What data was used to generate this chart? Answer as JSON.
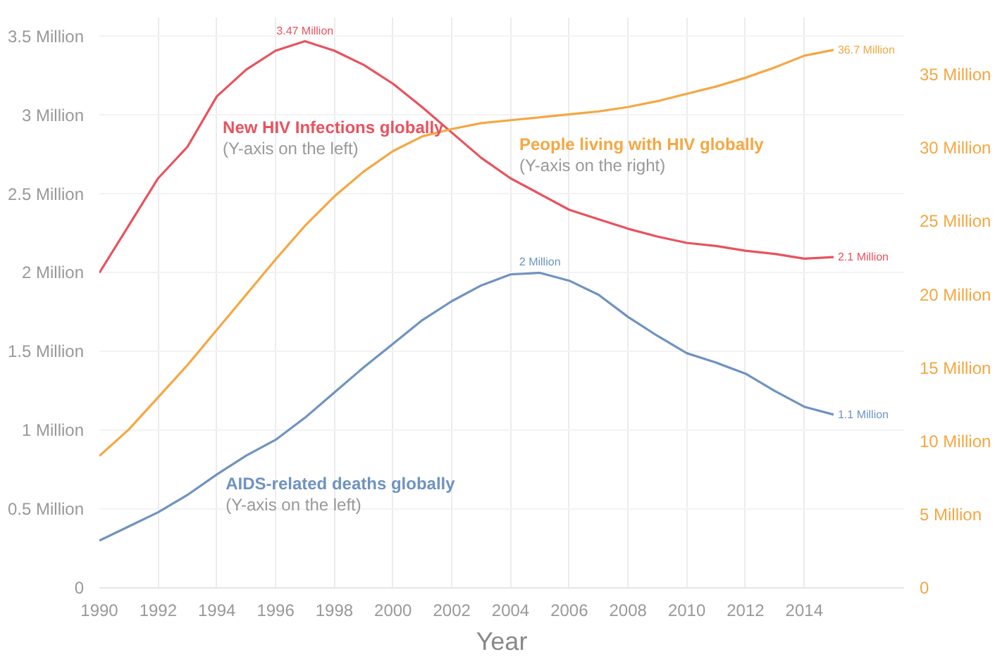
{
  "chart_data": {
    "type": "line",
    "xlabel": "Year",
    "x": [
      1990,
      1991,
      1992,
      1993,
      1994,
      1995,
      1996,
      1997,
      1998,
      1999,
      2000,
      2001,
      2002,
      2003,
      2004,
      2005,
      2006,
      2007,
      2008,
      2009,
      2010,
      2011,
      2012,
      2013,
      2014,
      2015
    ],
    "series": [
      {
        "name": "New HIV Infections globally",
        "color": "#e8525e",
        "values": [
          2.0,
          2.3,
          2.6,
          2.8,
          3.12,
          3.29,
          3.41,
          3.47,
          3.41,
          3.32,
          3.2,
          3.05,
          2.89,
          2.73,
          2.6,
          2.5,
          2.4,
          2.34,
          2.28,
          2.23,
          2.19,
          2.17,
          2.14,
          2.12,
          2.09,
          2.1
        ],
        "value_labels": [
          null,
          null,
          null,
          null,
          null,
          null,
          null,
          "3.47 Million",
          null,
          null,
          null,
          null,
          null,
          null,
          null,
          null,
          null,
          null,
          null,
          null,
          null,
          null,
          null,
          null,
          null,
          "2.1 Million"
        ]
      },
      {
        "name": "People living with HIV globally",
        "color": "#f5a742",
        "axis": "y2",
        "values": [
          9.0,
          10.8,
          13.0,
          15.2,
          17.6,
          20.0,
          22.4,
          24.7,
          26.7,
          28.4,
          29.8,
          30.8,
          31.3,
          31.7,
          31.9,
          32.1,
          32.3,
          32.5,
          32.8,
          33.2,
          33.7,
          34.2,
          34.8,
          35.5,
          36.3,
          36.7
        ],
        "value_labels": [
          null,
          null,
          null,
          null,
          null,
          null,
          null,
          null,
          null,
          null,
          null,
          null,
          null,
          null,
          null,
          null,
          null,
          null,
          null,
          null,
          null,
          null,
          null,
          null,
          null,
          "36.7 Million"
        ]
      },
      {
        "name": "AIDS-related deaths globally",
        "color": "#6f93c0",
        "values": [
          0.3,
          0.39,
          0.48,
          0.59,
          0.72,
          0.84,
          0.94,
          1.08,
          1.24,
          1.4,
          1.55,
          1.7,
          1.82,
          1.92,
          1.99,
          2.0,
          1.95,
          1.86,
          1.72,
          1.6,
          1.49,
          1.43,
          1.36,
          1.25,
          1.15,
          1.1
        ],
        "value_labels": [
          null,
          null,
          null,
          null,
          null,
          null,
          null,
          null,
          null,
          null,
          null,
          null,
          null,
          null,
          null,
          "2 Million",
          null,
          null,
          null,
          null,
          null,
          null,
          null,
          null,
          null,
          "1.1 Million"
        ]
      }
    ],
    "annotations": [
      "(Y-axis on the left)",
      "(Y-axis on the right)",
      "(Y-axis on the left)"
    ],
    "xlim": [
      1990,
      2017.4
    ],
    "xticks": [
      1990,
      1992,
      1994,
      1996,
      1998,
      2000,
      2002,
      2004,
      2006,
      2008,
      2010,
      2012,
      2014
    ],
    "ylim": [
      0,
      3.62
    ],
    "yticks": [
      0,
      {
        "value": 0.5,
        "label": "0.5 Million"
      },
      {
        "value": 1,
        "label": "1 Million"
      },
      {
        "value": 1.5,
        "label": "1.5 Million"
      },
      {
        "value": 2,
        "label": "2 Million"
      },
      {
        "value": 2.5,
        "label": "2.5 Million"
      },
      {
        "value": 3,
        "label": "3 Million"
      },
      {
        "value": 3.5,
        "label": "3.5 Million"
      }
    ],
    "y2lim": [
      0,
      38.9
    ],
    "y2ticks": [
      0,
      {
        "value": 5,
        "label": "5 Million"
      },
      {
        "value": 10,
        "label": "10 Million"
      },
      {
        "value": 15,
        "label": "15 Million"
      },
      {
        "value": 20,
        "label": "20 Million"
      },
      {
        "value": 25,
        "label": "25 Million"
      },
      {
        "value": 30,
        "label": "30 Million"
      },
      {
        "value": 35,
        "label": "35 Million"
      }
    ],
    "grid": true
  }
}
